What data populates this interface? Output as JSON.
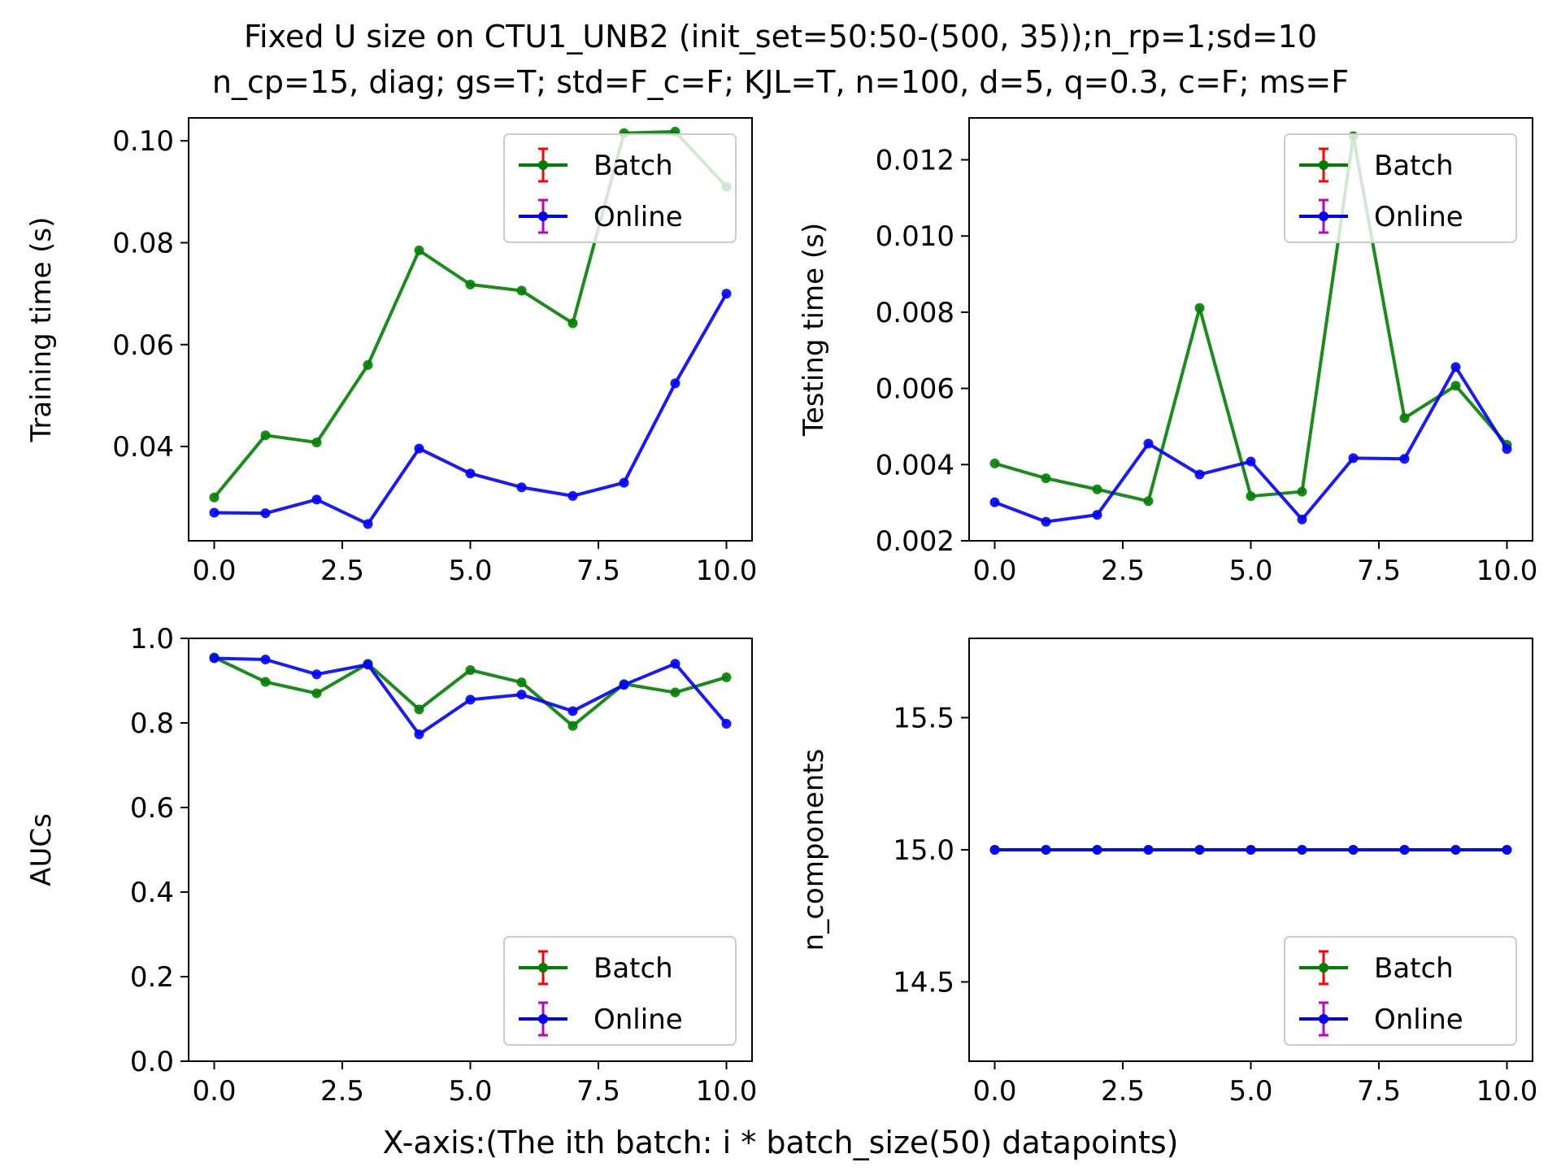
{
  "title": {
    "line1": "Fixed U size on CTU1_UNB2 (init_set=50:50-(500, 35));n_rp=1;sd=10",
    "line2": "n_cp=15, diag; gs=T; std=F_c=F; KJL=T, n=100, d=5, q=0.3, c=F; ms=F"
  },
  "global_xlabel": "X-axis:(The ith batch: i * batch_size(50) datapoints)",
  "colors": {
    "batch_line": "#008000",
    "online_line": "#0000ff",
    "batch_errbar": "#ff0000",
    "online_errbar": "#bf00bf",
    "axes": "#000000",
    "legend_border": "#cccccc"
  },
  "chart_data": [
    {
      "type": "line",
      "id": "training",
      "ylabel": "Training time (s)",
      "x": [
        0,
        1,
        2,
        3,
        4,
        5,
        6,
        7,
        8,
        9,
        10
      ],
      "xlim": [
        -0.5,
        10.5
      ],
      "ylim": [
        0.0215,
        0.1045
      ],
      "xticks": [
        0,
        2.5,
        5,
        7.5,
        10
      ],
      "xtick_labels": [
        "0.0",
        "2.5",
        "5.0",
        "7.5",
        "10.0"
      ],
      "yticks": [
        0.04,
        0.06,
        0.08,
        0.1
      ],
      "ytick_labels": [
        "0.04",
        "0.06",
        "0.08",
        "0.10"
      ],
      "legend_loc": "upper right",
      "series": [
        {
          "name": "Batch",
          "color": "#008000",
          "errcolor": "#ff0000",
          "values": [
            0.03,
            0.0422,
            0.0408,
            0.056,
            0.0785,
            0.0718,
            0.0706,
            0.0642,
            0.1015,
            0.1018,
            0.091
          ]
        },
        {
          "name": "Online",
          "color": "#0000ff",
          "errcolor": "#bf00bf",
          "values": [
            0.027,
            0.0269,
            0.0296,
            0.0248,
            0.0396,
            0.0347,
            0.032,
            0.0303,
            0.0329,
            0.0524,
            0.07
          ]
        }
      ]
    },
    {
      "type": "line",
      "id": "testing",
      "ylabel": "Testing time (s)",
      "x": [
        0,
        1,
        2,
        3,
        4,
        5,
        6,
        7,
        8,
        9,
        10
      ],
      "xlim": [
        -0.5,
        10.5
      ],
      "ylim": [
        0.002,
        0.0131
      ],
      "xticks": [
        0,
        2.5,
        5,
        7.5,
        10
      ],
      "xtick_labels": [
        "0.0",
        "2.5",
        "5.0",
        "7.5",
        "10.0"
      ],
      "yticks": [
        0.002,
        0.004,
        0.006,
        0.008,
        0.01,
        0.012
      ],
      "ytick_labels": [
        "0.002",
        "0.004",
        "0.006",
        "0.008",
        "0.010",
        "0.012"
      ],
      "legend_loc": "upper right",
      "series": [
        {
          "name": "Batch",
          "color": "#008000",
          "errcolor": "#ff0000",
          "values": [
            0.00403,
            0.00364,
            0.00335,
            0.00304,
            0.00811,
            0.00317,
            0.00329,
            0.01262,
            0.00522,
            0.00607,
            0.00452
          ]
        },
        {
          "name": "Online",
          "color": "#0000ff",
          "errcolor": "#bf00bf",
          "values": [
            0.00301,
            0.0025,
            0.00268,
            0.00455,
            0.00374,
            0.00408,
            0.00256,
            0.00417,
            0.00415,
            0.00656,
            0.00441
          ]
        }
      ]
    },
    {
      "type": "line",
      "id": "aucs",
      "ylabel": "AUCs",
      "x": [
        0,
        1,
        2,
        3,
        4,
        5,
        6,
        7,
        8,
        9,
        10
      ],
      "xlim": [
        -0.5,
        10.5
      ],
      "ylim": [
        0.0,
        1.0
      ],
      "xticks": [
        0,
        2.5,
        5,
        7.5,
        10
      ],
      "xtick_labels": [
        "0.0",
        "2.5",
        "5.0",
        "7.5",
        "10.0"
      ],
      "yticks": [
        0.0,
        0.2,
        0.4,
        0.6,
        0.8,
        1.0
      ],
      "ytick_labels": [
        "0.0",
        "0.2",
        "0.4",
        "0.6",
        "0.8",
        "1.0"
      ],
      "legend_loc": "lower right",
      "series": [
        {
          "name": "Batch",
          "color": "#008000",
          "errcolor": "#ff0000",
          "values": [
            0.955,
            0.897,
            0.87,
            0.94,
            0.832,
            0.925,
            0.896,
            0.793,
            0.892,
            0.872,
            0.908
          ]
        },
        {
          "name": "Online",
          "color": "#0000ff",
          "errcolor": "#bf00bf",
          "values": [
            0.953,
            0.95,
            0.915,
            0.938,
            0.773,
            0.855,
            0.867,
            0.828,
            0.89,
            0.94,
            0.798
          ]
        }
      ]
    },
    {
      "type": "line",
      "id": "ncomponents",
      "ylabel": "n_components",
      "x": [
        0,
        1,
        2,
        3,
        4,
        5,
        6,
        7,
        8,
        9,
        10
      ],
      "xlim": [
        -0.5,
        10.5
      ],
      "ylim": [
        14.2,
        15.8
      ],
      "xticks": [
        0,
        2.5,
        5,
        7.5,
        10
      ],
      "xtick_labels": [
        "0.0",
        "2.5",
        "5.0",
        "7.5",
        "10.0"
      ],
      "yticks": [
        14.5,
        15.0,
        15.5
      ],
      "ytick_labels": [
        "14.5",
        "15.0",
        "15.5"
      ],
      "legend_loc": "lower right",
      "series": [
        {
          "name": "Batch",
          "color": "#008000",
          "errcolor": "#ff0000",
          "values": [
            15,
            15,
            15,
            15,
            15,
            15,
            15,
            15,
            15,
            15,
            15
          ]
        },
        {
          "name": "Online",
          "color": "#0000ff",
          "errcolor": "#bf00bf",
          "values": [
            15,
            15,
            15,
            15,
            15,
            15,
            15,
            15,
            15,
            15,
            15
          ]
        }
      ]
    }
  ]
}
